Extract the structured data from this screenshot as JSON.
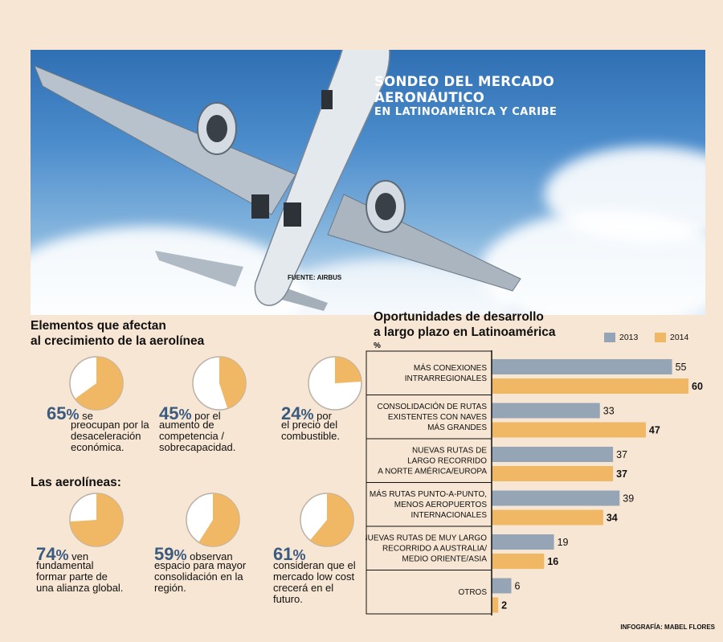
{
  "hero": {
    "title_line1": "SONDEO DEL MERCADO",
    "title_line2": "AERONÁUTICO",
    "subtitle": "EN LATINOAMÉRICA Y CARIBE",
    "source": "FUENTE: AIRBUS"
  },
  "factors": {
    "title_line1": "Elementos que afectan",
    "title_line2": "al crecimiento de la aerolínea",
    "items": [
      {
        "value": 65,
        "pct": "65",
        "text": [
          "se",
          "preocupan por la",
          "desaceleración",
          "económica."
        ]
      },
      {
        "value": 45,
        "pct": "45",
        "text": [
          "por el",
          "aumento de",
          "competencia /",
          "sobrecapacidad."
        ]
      },
      {
        "value": 24,
        "pct": "24",
        "text": [
          "por",
          "el precio del",
          "combustible."
        ]
      }
    ]
  },
  "airlines": {
    "title": "Las aerolíneas:",
    "items": [
      {
        "value": 74,
        "pct": "74",
        "text": [
          "ven",
          "fundamental",
          "formar parte de",
          "una alianza global."
        ]
      },
      {
        "value": 59,
        "pct": "59",
        "text": [
          "observan",
          "espacio para mayor",
          "consolidación en la",
          "región."
        ]
      },
      {
        "value": 61,
        "pct": "61",
        "text": [
          "",
          "consideran que el",
          "mercado low cost",
          "crecerá en el",
          "futuro."
        ]
      }
    ]
  },
  "percent_symbol": "%",
  "credit": "INFOGRAFÍA: MABEL FLORES",
  "colors": {
    "pie_fill": "#f0b765",
    "pie_bg": "#ffffff",
    "pie_border": "#b9b2a8",
    "bar_2013": "#95a5b5",
    "bar_2014": "#f0b765",
    "pct_text": "#3a5a80"
  },
  "chart_data": {
    "type": "bar",
    "orientation": "horizontal",
    "title": "Oportunidades de desarrollo a largo plazo en Latinoamérica",
    "title_line1": "Oportunidades de desarrollo",
    "title_line2": "a largo plazo en Latinoamérica",
    "ylabel": "%",
    "categories": [
      [
        "MÁS CONEXIONES",
        "INTRARREGIONALES"
      ],
      [
        "CONSOLIDACIÓN DE RUTAS",
        "EXISTENTES CON NAVES",
        "MÁS GRANDES"
      ],
      [
        "NUEVAS RUTAS DE",
        "LARGO RECORRIDO",
        "A NORTE AMÉRICA/EUROPA"
      ],
      [
        "MÁS RUTAS PUNTO-A-PUNTO,",
        "MENOS AEROPUERTOS",
        "INTERNACIONALES"
      ],
      [
        "NUEVAS RUTAS DE MUY LARGO",
        "RECORRIDO A AUSTRALIA/",
        "MEDIO ORIENTE/ASIA"
      ],
      [
        "OTROS"
      ]
    ],
    "series": [
      {
        "name": "2013",
        "values": [
          55,
          33,
          37,
          39,
          19,
          6
        ]
      },
      {
        "name": "2014",
        "values": [
          60,
          47,
          37,
          34,
          16,
          2
        ]
      }
    ],
    "xlim": [
      0,
      60
    ],
    "legend": "top-right"
  }
}
